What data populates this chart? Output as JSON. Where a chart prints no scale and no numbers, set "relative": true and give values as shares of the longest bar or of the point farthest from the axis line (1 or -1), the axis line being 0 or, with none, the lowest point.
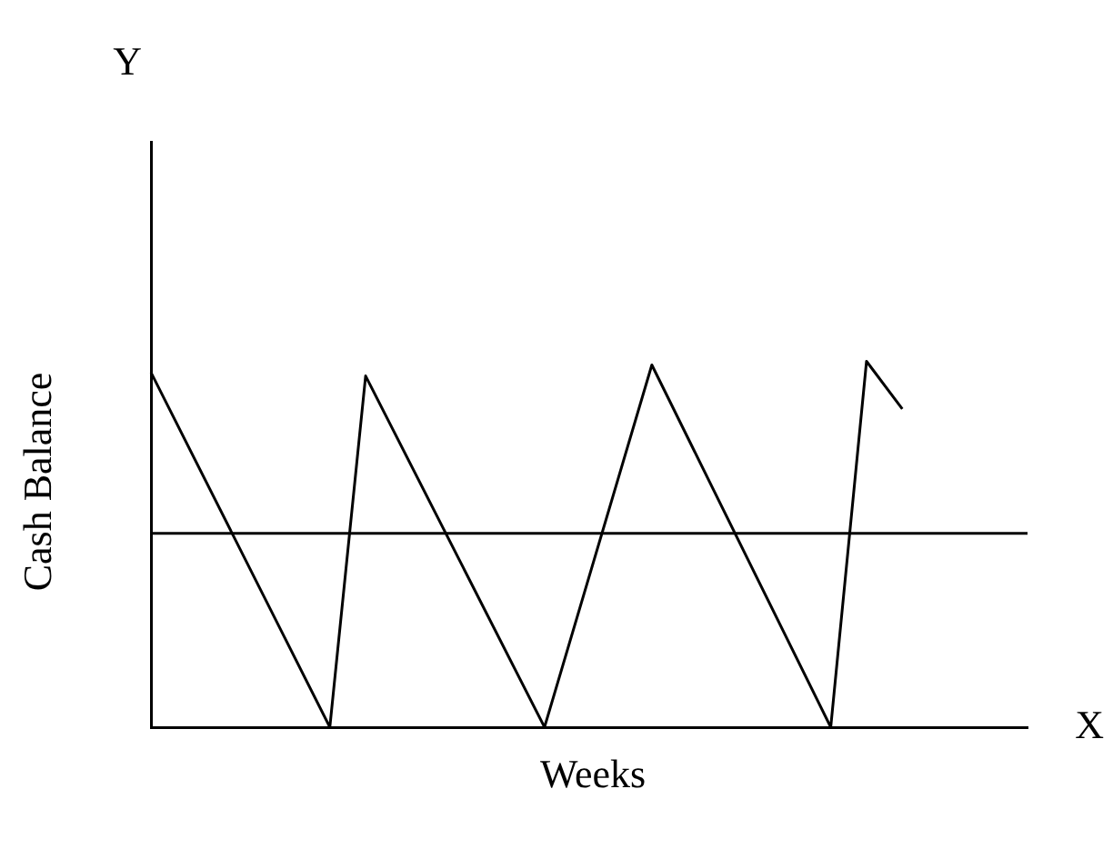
{
  "chart_data": {
    "type": "line",
    "relative": true,
    "xlabel": "Weeks",
    "ylabel": "Cash Balance",
    "annotations": [
      "Y",
      "X"
    ],
    "categories": [
      null,
      null,
      null,
      null,
      null,
      null,
      null,
      null,
      null,
      null,
      null,
      null,
      null,
      null,
      null,
      null,
      null,
      null,
      null,
      null,
      null,
      null,
      null,
      null,
      null,
      null,
      null,
      null,
      null,
      null,
      null,
      null,
      null,
      null,
      null,
      null,
      null,
      null,
      null,
      null,
      null,
      null,
      null,
      null,
      null,
      null,
      null,
      null,
      null,
      null
    ],
    "series": [
      {
        "color": "#000000",
        "values": [
          0.97,
          null,
          null,
          null,
          null,
          null,
          null,
          null,
          null,
          null,
          0,
          null,
          0.96,
          null,
          null,
          null,
          null,
          null,
          null,
          null,
          null,
          null,
          0,
          null,
          null,
          null,
          null,
          null,
          0.99,
          null,
          null,
          null,
          null,
          null,
          null,
          null,
          null,
          null,
          0,
          null,
          1,
          null,
          0.87,
          null,
          null,
          null,
          null,
          null,
          null,
          null
        ]
      }
    ],
    "ref_lines": [
      {
        "axis": "y",
        "value": 0.53,
        "color": "#000000"
      }
    ],
    "grid": false,
    "legend": false,
    "marker": "none",
    "line_style": "solid"
  }
}
